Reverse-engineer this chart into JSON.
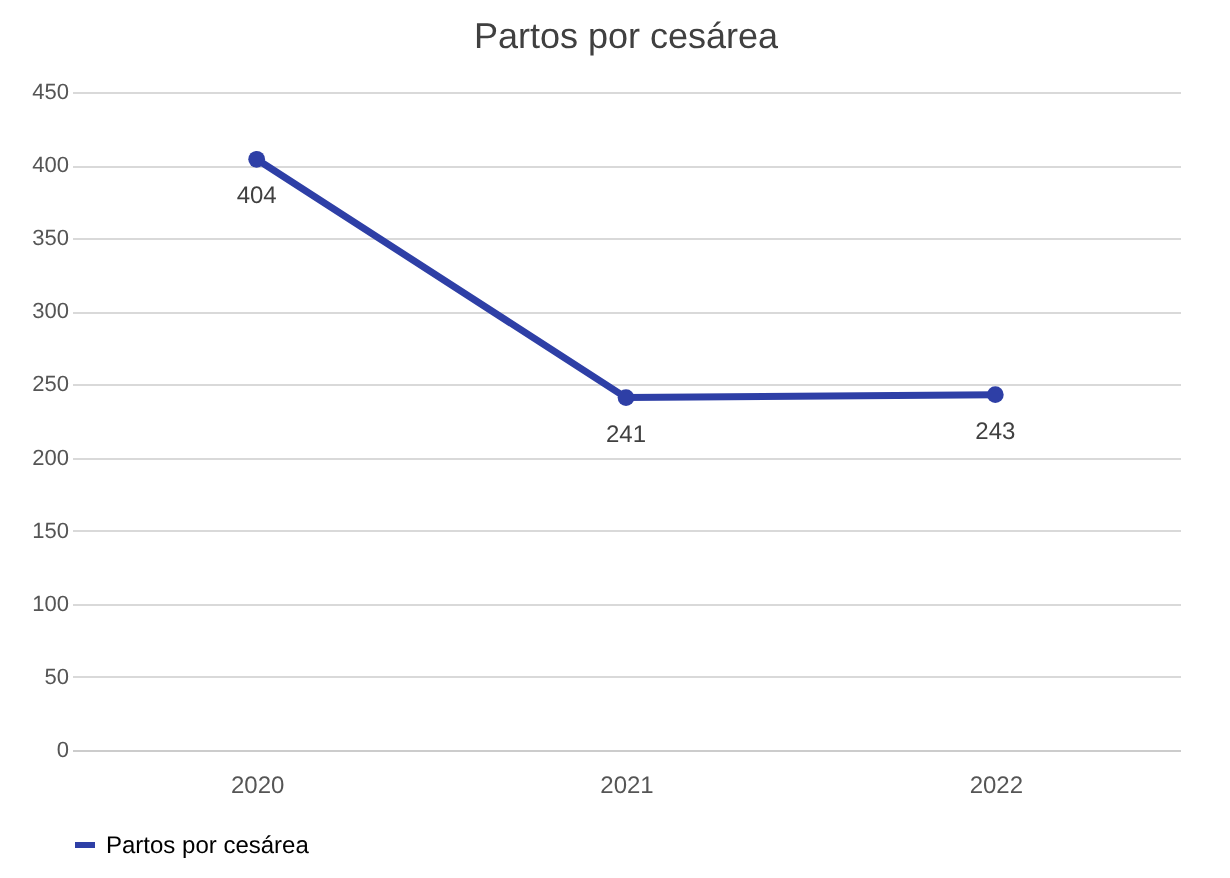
{
  "chart_data": {
    "type": "line",
    "title": "Partos por cesárea",
    "categories": [
      "2020",
      "2021",
      "2022"
    ],
    "series": [
      {
        "name": "Partos por cesárea",
        "color": "#2e3fa6",
        "values": [
          404,
          241,
          243
        ]
      }
    ],
    "ylim": [
      0,
      450
    ],
    "yticks": [
      0,
      50,
      100,
      150,
      200,
      250,
      300,
      350,
      400,
      450
    ],
    "grid": "y",
    "legend": "bottom",
    "marker": "circle",
    "line_style": "solid",
    "data_labels": true
  }
}
